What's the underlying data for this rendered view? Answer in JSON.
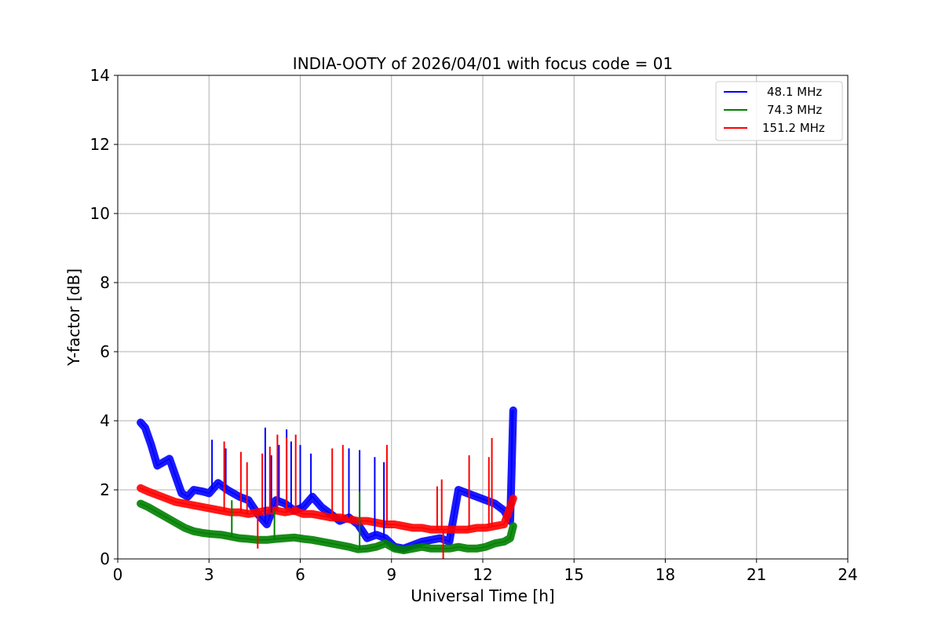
{
  "chart_data": {
    "type": "line",
    "title": "INDIA-OOTY of 2026/04/01 with focus code = 01",
    "xlabel": "Universal Time [h]",
    "ylabel": "Y-factor [dB]",
    "xlim": [
      0,
      24
    ],
    "ylim": [
      0,
      14
    ],
    "xticks": [
      0,
      3,
      6,
      9,
      12,
      15,
      18,
      21,
      24
    ],
    "yticks": [
      0,
      2,
      4,
      6,
      8,
      10,
      12,
      14
    ],
    "xtick_labels": [
      "0",
      "3",
      "6",
      "9",
      "12",
      "15",
      "18",
      "21",
      "24"
    ],
    "ytick_labels": [
      "0",
      "2",
      "4",
      "6",
      "8",
      "10",
      "12",
      "14"
    ],
    "grid": true,
    "legend_position": "top-right",
    "series": [
      {
        "name": "48.1 MHz",
        "color": "#0000ff",
        "x": [
          0.75,
          0.9,
          1.1,
          1.3,
          1.5,
          1.7,
          1.9,
          2.1,
          2.3,
          2.5,
          2.8,
          3.0,
          3.3,
          3.6,
          4.0,
          4.3,
          4.6,
          4.9,
          5.2,
          5.5,
          5.8,
          6.1,
          6.4,
          6.7,
          7.0,
          7.3,
          7.6,
          7.9,
          8.2,
          8.5,
          8.8,
          9.1,
          9.4,
          9.7,
          10.0,
          10.3,
          10.6,
          10.9,
          11.2,
          11.5,
          11.8,
          12.1,
          12.4,
          12.7,
          12.9,
          12.95,
          13.0
        ],
        "y": [
          3.95,
          3.8,
          3.3,
          2.7,
          2.8,
          2.9,
          2.4,
          1.9,
          1.8,
          2.0,
          1.95,
          1.9,
          2.2,
          2.0,
          1.8,
          1.7,
          1.3,
          1.0,
          1.7,
          1.6,
          1.4,
          1.5,
          1.8,
          1.5,
          1.3,
          1.1,
          1.2,
          1.0,
          0.6,
          0.7,
          0.6,
          0.35,
          0.3,
          0.4,
          0.5,
          0.55,
          0.6,
          0.5,
          2.0,
          1.9,
          1.8,
          1.7,
          1.6,
          1.4,
          1.1,
          2.6,
          4.3
        ]
      },
      {
        "name": "74.3 MHz",
        "color": "#008000",
        "x": [
          0.75,
          1.0,
          1.3,
          1.6,
          1.9,
          2.2,
          2.5,
          2.8,
          3.1,
          3.4,
          3.7,
          4.0,
          4.3,
          4.6,
          4.9,
          5.2,
          5.5,
          5.8,
          6.1,
          6.4,
          6.7,
          7.0,
          7.3,
          7.6,
          7.9,
          8.2,
          8.5,
          8.8,
          9.1,
          9.4,
          9.7,
          10.0,
          10.3,
          10.6,
          10.9,
          11.2,
          11.5,
          11.8,
          12.1,
          12.4,
          12.7,
          12.9,
          13.0
        ],
        "y": [
          1.6,
          1.5,
          1.35,
          1.2,
          1.05,
          0.9,
          0.8,
          0.75,
          0.72,
          0.7,
          0.65,
          0.6,
          0.58,
          0.55,
          0.55,
          0.58,
          0.6,
          0.62,
          0.58,
          0.55,
          0.5,
          0.45,
          0.4,
          0.35,
          0.28,
          0.3,
          0.35,
          0.45,
          0.3,
          0.25,
          0.3,
          0.35,
          0.3,
          0.3,
          0.3,
          0.35,
          0.3,
          0.3,
          0.35,
          0.45,
          0.5,
          0.6,
          0.95
        ]
      },
      {
        "name": "151.2 MHz",
        "color": "#ff0000",
        "x": [
          0.75,
          1.0,
          1.3,
          1.6,
          1.9,
          2.2,
          2.5,
          2.8,
          3.1,
          3.4,
          3.7,
          4.0,
          4.3,
          4.6,
          4.9,
          5.2,
          5.5,
          5.8,
          6.1,
          6.4,
          6.7,
          7.0,
          7.3,
          7.6,
          7.9,
          8.2,
          8.5,
          8.8,
          9.1,
          9.4,
          9.7,
          10.0,
          10.3,
          10.6,
          10.9,
          11.2,
          11.5,
          11.8,
          12.1,
          12.4,
          12.7,
          12.9,
          13.0
        ],
        "y": [
          2.05,
          1.95,
          1.85,
          1.75,
          1.65,
          1.6,
          1.55,
          1.5,
          1.45,
          1.4,
          1.35,
          1.35,
          1.3,
          1.35,
          1.4,
          1.4,
          1.35,
          1.4,
          1.3,
          1.3,
          1.25,
          1.2,
          1.2,
          1.15,
          1.1,
          1.1,
          1.05,
          1.0,
          1.0,
          0.95,
          0.9,
          0.9,
          0.85,
          0.85,
          0.85,
          0.85,
          0.85,
          0.9,
          0.9,
          0.95,
          1.0,
          1.5,
          1.75
        ]
      }
    ],
    "spikes": [
      {
        "series": 0,
        "x": 3.1,
        "y": 3.45
      },
      {
        "series": 0,
        "x": 3.55,
        "y": 3.2
      },
      {
        "series": 0,
        "x": 4.85,
        "y": 3.8
      },
      {
        "series": 0,
        "x": 5.05,
        "y": 3.0
      },
      {
        "series": 0,
        "x": 5.3,
        "y": 3.3
      },
      {
        "series": 0,
        "x": 5.55,
        "y": 3.75
      },
      {
        "series": 0,
        "x": 5.7,
        "y": 3.4
      },
      {
        "series": 0,
        "x": 6.0,
        "y": 3.3
      },
      {
        "series": 0,
        "x": 6.35,
        "y": 3.05
      },
      {
        "series": 0,
        "x": 7.6,
        "y": 3.2
      },
      {
        "series": 0,
        "x": 7.95,
        "y": 3.15
      },
      {
        "series": 0,
        "x": 8.45,
        "y": 2.95
      },
      {
        "series": 0,
        "x": 8.75,
        "y": 2.8
      },
      {
        "series": 0,
        "x": 12.95,
        "y": 4.3
      },
      {
        "series": 1,
        "x": 3.75,
        "y": 1.7
      },
      {
        "series": 1,
        "x": 5.15,
        "y": 1.4
      },
      {
        "series": 1,
        "x": 7.95,
        "y": 1.95
      },
      {
        "series": 2,
        "x": 3.5,
        "y": 3.4
      },
      {
        "series": 2,
        "x": 4.05,
        "y": 3.1
      },
      {
        "series": 2,
        "x": 4.25,
        "y": 2.8
      },
      {
        "series": 2,
        "x": 4.75,
        "y": 3.05
      },
      {
        "series": 2,
        "x": 5.0,
        "y": 3.25
      },
      {
        "series": 2,
        "x": 5.25,
        "y": 3.6
      },
      {
        "series": 2,
        "x": 5.55,
        "y": 3.5
      },
      {
        "series": 2,
        "x": 5.85,
        "y": 3.6
      },
      {
        "series": 2,
        "x": 7.05,
        "y": 3.2
      },
      {
        "series": 2,
        "x": 7.4,
        "y": 3.3
      },
      {
        "series": 2,
        "x": 8.85,
        "y": 3.3
      },
      {
        "series": 2,
        "x": 10.5,
        "y": 2.1
      },
      {
        "series": 2,
        "x": 10.65,
        "y": 2.3
      },
      {
        "series": 2,
        "x": 11.55,
        "y": 3.0
      },
      {
        "series": 2,
        "x": 12.2,
        "y": 2.95
      },
      {
        "series": 2,
        "x": 12.3,
        "y": 3.5
      },
      {
        "series": 2,
        "x": 4.6,
        "y": 0.3
      },
      {
        "series": 2,
        "x": 10.7,
        "y": 0.0
      }
    ]
  }
}
